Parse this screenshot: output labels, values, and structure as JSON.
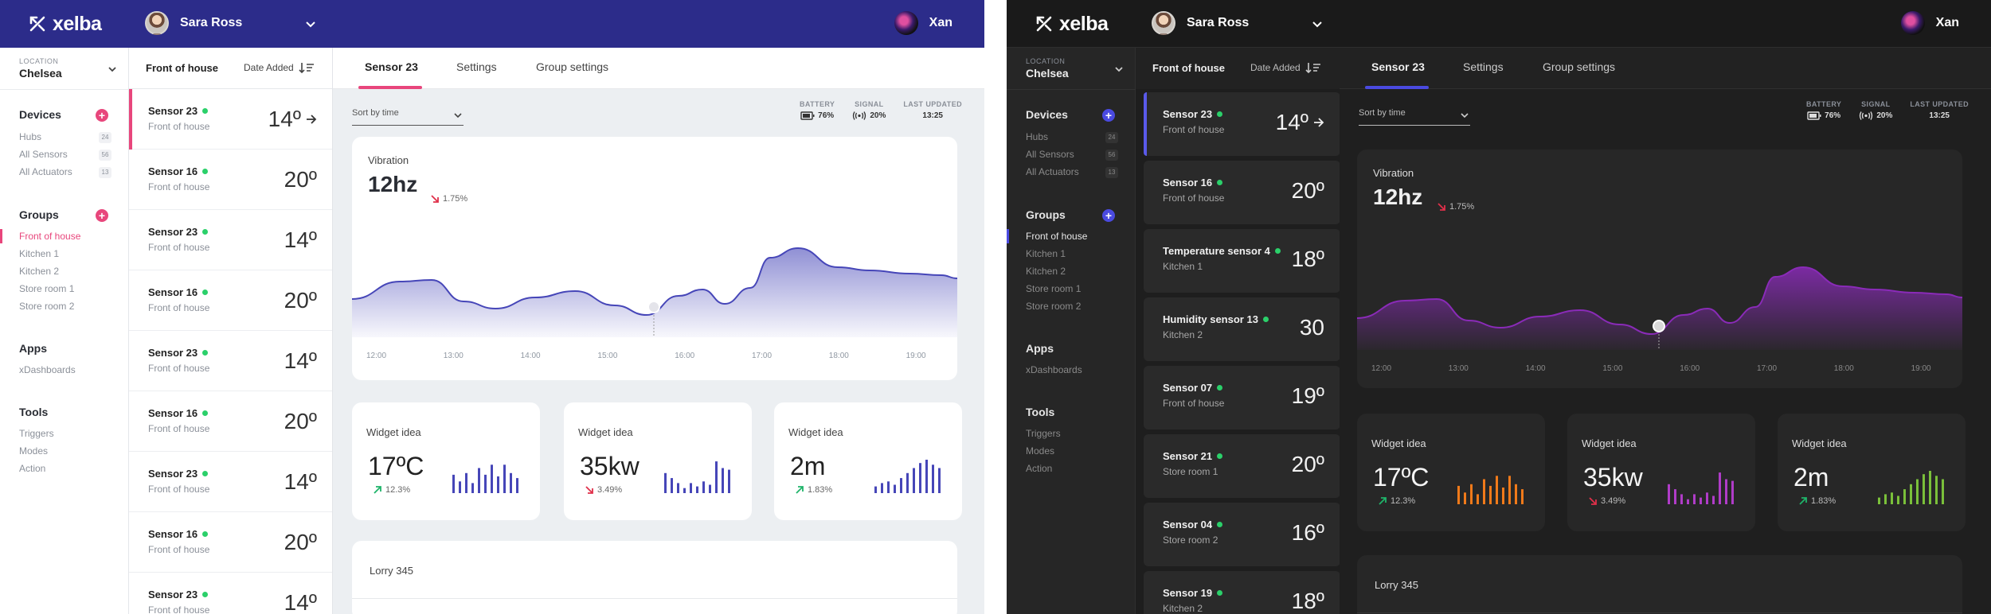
{
  "brand": "xelba",
  "user": {
    "name": "Sara Ross",
    "alt_name": "Xan"
  },
  "location": {
    "caption": "LOCATION",
    "value": "Chelsea"
  },
  "sidebar": {
    "devices": {
      "label": "Devices",
      "items": [
        {
          "label": "Hubs",
          "count": "24"
        },
        {
          "label": "All Sensors",
          "count": "56"
        },
        {
          "label": "All Actuators",
          "count": "13"
        }
      ]
    },
    "groups": {
      "label": "Groups",
      "items": [
        "Front of house",
        "Kitchen 1",
        "Kitchen 2",
        "Store room 1",
        "Store room 2"
      ]
    },
    "apps": {
      "label": "Apps",
      "items": [
        "xDashboards"
      ]
    },
    "tools": {
      "label": "Tools",
      "items": [
        "Triggers",
        "Modes",
        "Action"
      ]
    }
  },
  "list": {
    "title": "Front of house",
    "sort_label": "Date Added",
    "light_items": [
      {
        "name": "Sensor 23",
        "loc": "Front of house",
        "value": "14º"
      },
      {
        "name": "Sensor 16",
        "loc": "Front of house",
        "value": "20º"
      },
      {
        "name": "Sensor 23",
        "loc": "Front of house",
        "value": "14º"
      },
      {
        "name": "Sensor 16",
        "loc": "Front of house",
        "value": "20º"
      },
      {
        "name": "Sensor 23",
        "loc": "Front of house",
        "value": "14º"
      },
      {
        "name": "Sensor 16",
        "loc": "Front of house",
        "value": "20º"
      },
      {
        "name": "Sensor 23",
        "loc": "Front of house",
        "value": "14º"
      },
      {
        "name": "Sensor 16",
        "loc": "Front of house",
        "value": "20º"
      },
      {
        "name": "Sensor 23",
        "loc": "Front of house",
        "value": "14º"
      }
    ],
    "dark_items": [
      {
        "name": "Sensor 23",
        "loc": "Front of house",
        "value": "14º"
      },
      {
        "name": "Sensor 16",
        "loc": "Front of house",
        "value": "20º"
      },
      {
        "name": "Temperature sensor 4",
        "loc": "Kitchen 1",
        "value": "18º"
      },
      {
        "name": "Humidity sensor 13",
        "loc": "Kitchen 2",
        "value": "30"
      },
      {
        "name": "Sensor 07",
        "loc": "Front of house",
        "value": "19º"
      },
      {
        "name": "Sensor 21",
        "loc": "Store room 1",
        "value": "20º"
      },
      {
        "name": "Sensor 04",
        "loc": "Store room 2",
        "value": "16º"
      },
      {
        "name": "Sensor 19",
        "loc": "Kitchen 2",
        "value": "18º"
      }
    ]
  },
  "tabs": [
    "Sensor 23",
    "Settings",
    "Group settings"
  ],
  "sort_select": "Sort by time",
  "stats": {
    "battery": {
      "label": "BATTERY",
      "value": "76%"
    },
    "signal": {
      "label": "SIGNAL",
      "value": "20%"
    },
    "updated": {
      "label": "LAST UPDATED",
      "value": "13:25"
    }
  },
  "vibration": {
    "label": "Vibration",
    "value": "12hz",
    "trend": "1.75%"
  },
  "chart_data": {
    "type": "area",
    "x": [
      "12:00",
      "13:00",
      "14:00",
      "15:00",
      "16:00",
      "17:00",
      "18:00",
      "19:00"
    ],
    "title": "",
    "xlabel": "",
    "ylabel": ""
  },
  "widgets": [
    {
      "label": "Widget idea",
      "value": "17ºC",
      "trend": "12.3%",
      "dir": "up",
      "dark_color": "#f07a1a",
      "bars": [
        0.55,
        0.35,
        0.6,
        0.3,
        0.75,
        0.55,
        0.85,
        0.5,
        0.85,
        0.6,
        0.45
      ]
    },
    {
      "label": "Widget idea",
      "value": "35kw",
      "trend": "3.49%",
      "dir": "down",
      "dark_color": "#b03cc8",
      "bars": [
        0.6,
        0.45,
        0.3,
        0.15,
        0.3,
        0.2,
        0.35,
        0.25,
        0.95,
        0.75,
        0.7
      ]
    },
    {
      "label": "Widget idea",
      "value": "2m",
      "trend": "1.83%",
      "dir": "up",
      "dark_color": "#7ac03a",
      "bars": [
        0.2,
        0.3,
        0.35,
        0.25,
        0.45,
        0.6,
        0.75,
        0.9,
        1.0,
        0.85,
        0.75
      ]
    }
  ],
  "lorry": "Lorry 345",
  "colors": {
    "light_accent": "#e8467c",
    "light_header": "#2c2c8a",
    "chart_light": "#4646b8",
    "chart_dark": "#8a2bb8",
    "dark_accent": "#4a4ae0"
  }
}
